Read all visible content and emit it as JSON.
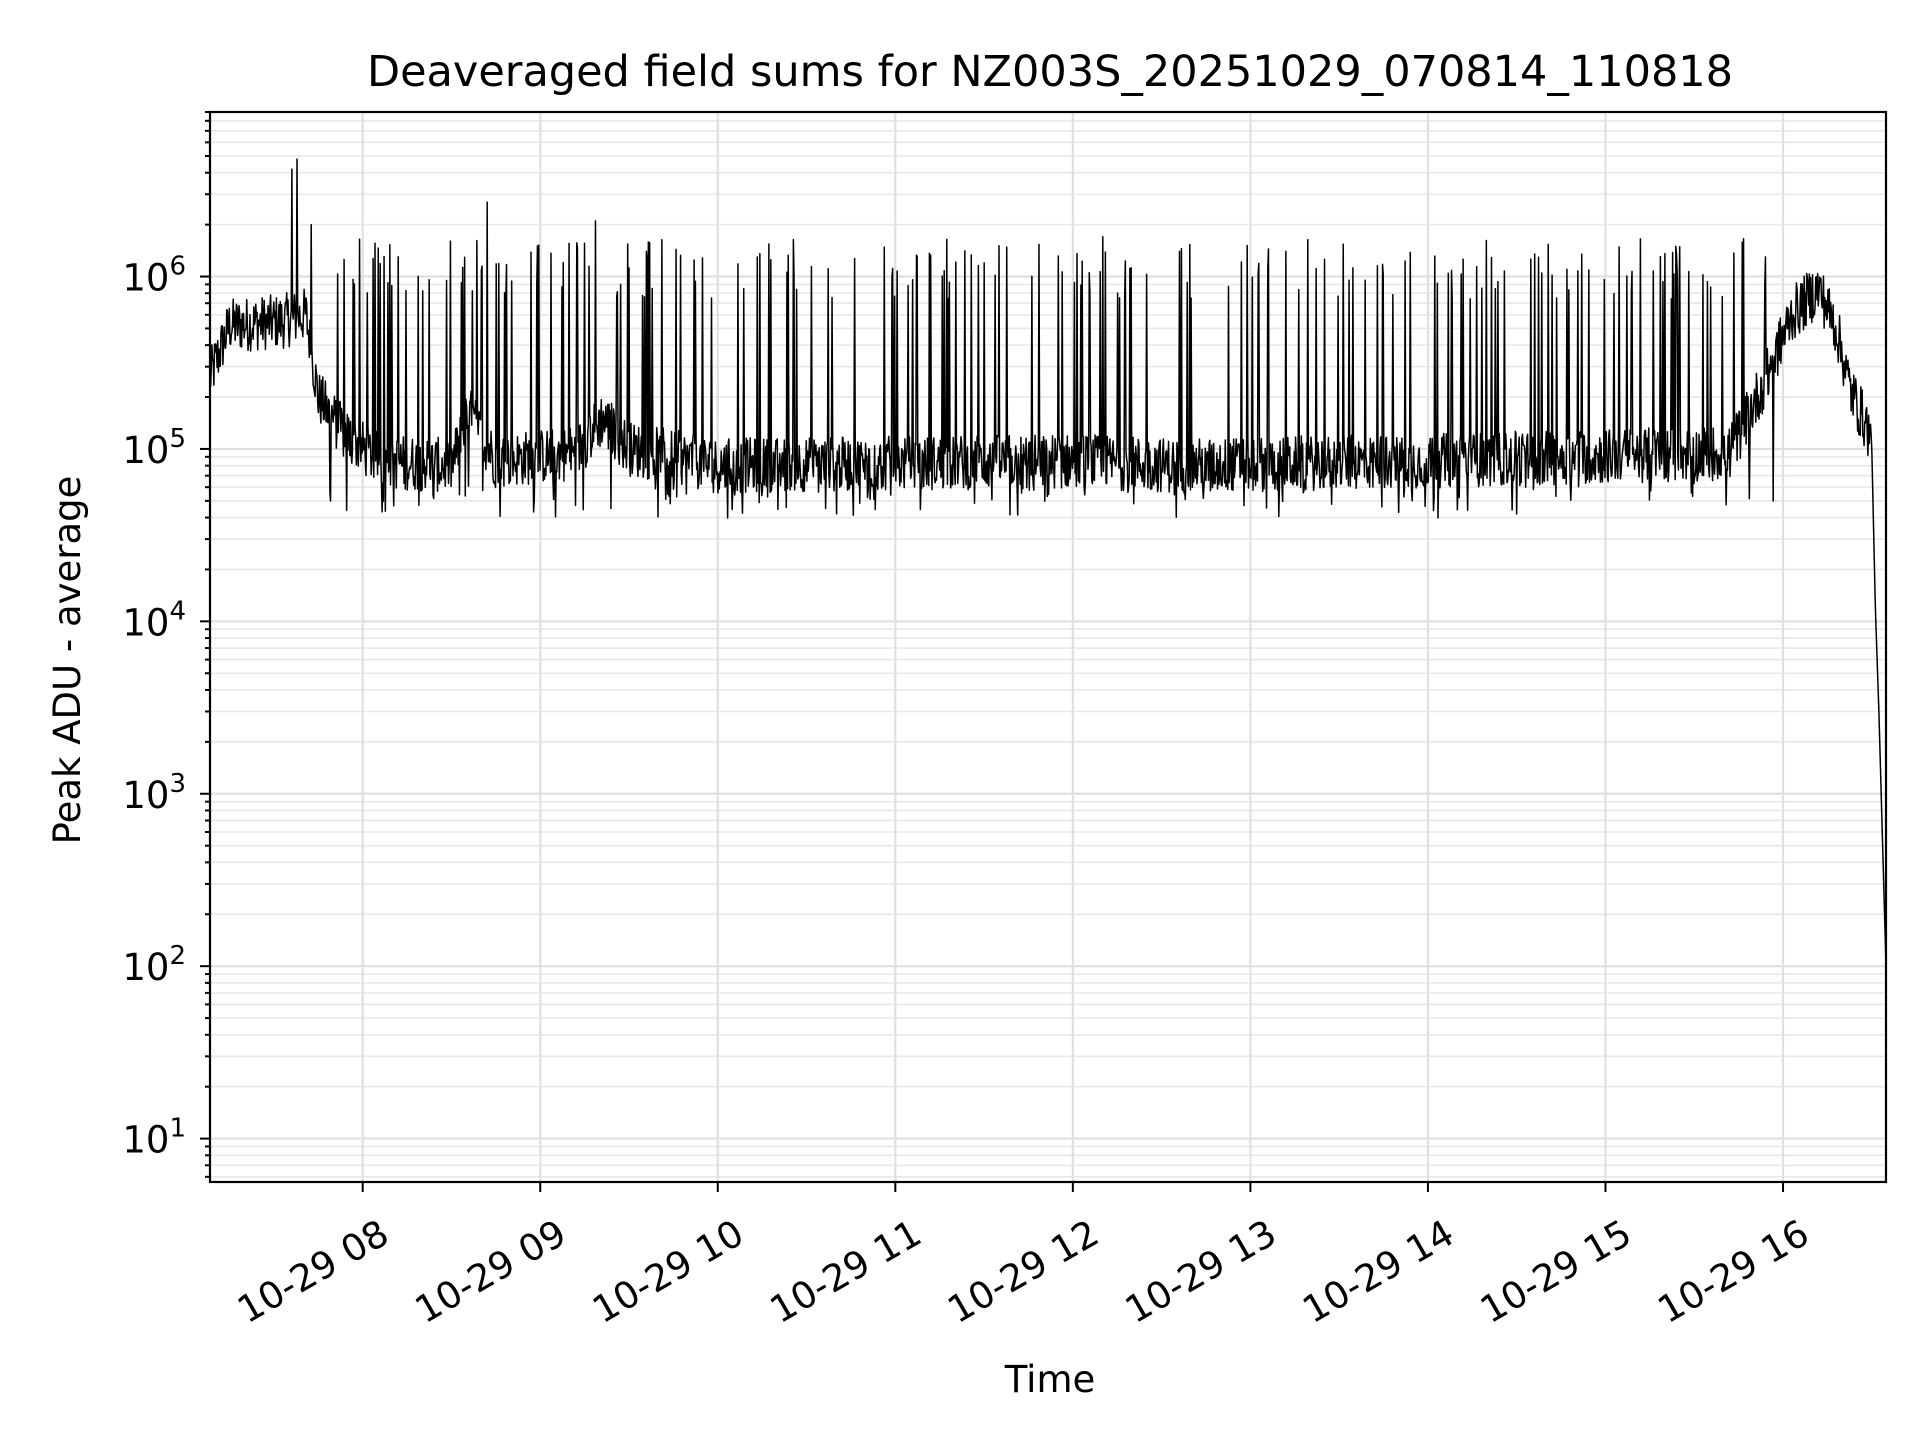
{
  "chart_data": {
    "type": "line",
    "title": "Deaveraged field sums for NZ003S_20251029_070814_110818",
    "xlabel": "Time",
    "ylabel": "Peak ADU - average",
    "yscale": "log",
    "ylim": [
      5.6,
      9000000
    ],
    "xlim_hours": [
      7.14,
      16.58
    ],
    "grid": true,
    "x_ticks": [
      {
        "hour": 8,
        "label": "10-29 08"
      },
      {
        "hour": 9,
        "label": "10-29 09"
      },
      {
        "hour": 10,
        "label": "10-29 10"
      },
      {
        "hour": 11,
        "label": "10-29 11"
      },
      {
        "hour": 12,
        "label": "10-29 12"
      },
      {
        "hour": 13,
        "label": "10-29 13"
      },
      {
        "hour": 14,
        "label": "10-29 14"
      },
      {
        "hour": 15,
        "label": "10-29 15"
      },
      {
        "hour": 16,
        "label": "10-29 16"
      }
    ],
    "y_ticks": [
      {
        "value": 10,
        "base": "10",
        "exp": "1"
      },
      {
        "value": 100,
        "base": "10",
        "exp": "2"
      },
      {
        "value": 1000,
        "base": "10",
        "exp": "3"
      },
      {
        "value": 10000,
        "base": "10",
        "exp": "4"
      },
      {
        "value": 100000,
        "base": "10",
        "exp": "5"
      },
      {
        "value": 1000000,
        "base": "10",
        "exp": "6"
      }
    ],
    "series": [
      {
        "name": "peak_adu_minus_average",
        "color": "#000000",
        "baseline_profile": [
          {
            "hour": 7.14,
            "value": 260000
          },
          {
            "hour": 7.25,
            "value": 520000
          },
          {
            "hour": 7.55,
            "value": 550000
          },
          {
            "hour": 7.68,
            "value": 600000
          },
          {
            "hour": 7.75,
            "value": 200000
          },
          {
            "hour": 7.9,
            "value": 120000
          },
          {
            "hour": 8.1,
            "value": 85000
          },
          {
            "hour": 8.5,
            "value": 80000
          },
          {
            "hour": 8.6,
            "value": 160000
          },
          {
            "hour": 8.75,
            "value": 85000
          },
          {
            "hour": 9.2,
            "value": 95000
          },
          {
            "hour": 9.35,
            "value": 150000
          },
          {
            "hour": 9.5,
            "value": 100000
          },
          {
            "hour": 10.0,
            "value": 80000
          },
          {
            "hour": 12.0,
            "value": 85000
          },
          {
            "hour": 12.6,
            "value": 80000
          },
          {
            "hour": 14.0,
            "value": 85000
          },
          {
            "hour": 15.7,
            "value": 95000
          },
          {
            "hour": 15.9,
            "value": 250000
          },
          {
            "hour": 16.05,
            "value": 600000
          },
          {
            "hour": 16.2,
            "value": 850000
          },
          {
            "hour": 16.3,
            "value": 500000
          },
          {
            "hour": 16.38,
            "value": 220000
          },
          {
            "hour": 16.48,
            "value": 130000
          },
          {
            "hour": 16.5,
            "value": 100000
          },
          {
            "hour": 16.52,
            "value": 12000
          },
          {
            "hour": 16.54,
            "value": 3000
          },
          {
            "hour": 16.58,
            "value": 100
          }
        ],
        "spikes": [
          {
            "hour": 7.63,
            "value": 4800000
          },
          {
            "hour": 7.6,
            "value": 4200000
          },
          {
            "hour": 7.71,
            "value": 2000000
          },
          {
            "hour": 8.7,
            "value": 2700000
          },
          {
            "hour": 9.31,
            "value": 2100000
          },
          {
            "hour": 12.17,
            "value": 1700000
          },
          {
            "hour": 8.2,
            "value": 1300000
          },
          {
            "hour": 10.3,
            "value": 1250000
          },
          {
            "hour": 11.5,
            "value": 1200000
          },
          {
            "hour": 12.6,
            "value": 1400000
          },
          {
            "hour": 13.2,
            "value": 1400000
          },
          {
            "hour": 13.9,
            "value": 1380000
          },
          {
            "hour": 14.6,
            "value": 1350000
          },
          {
            "hour": 15.4,
            "value": 1350000
          },
          {
            "hour": 15.9,
            "value": 1300000
          }
        ],
        "dense_spike_band": {
          "from_hour": 7.8,
          "to_hour": 15.95,
          "spike_value": 1200000,
          "dip_value": 50000
        }
      }
    ]
  }
}
